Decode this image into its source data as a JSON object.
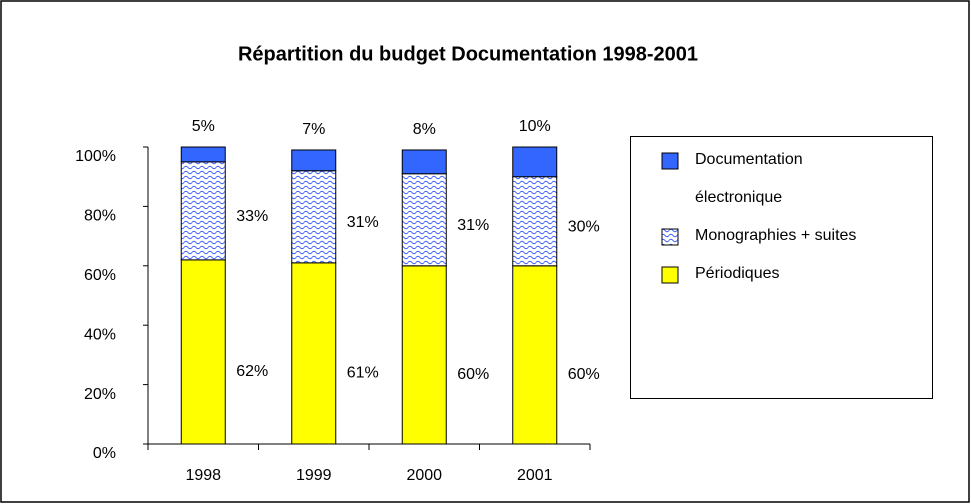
{
  "chart_data": {
    "type": "stacked-bar",
    "title": "Répartition du budget Documentation 1998-2001",
    "categories": [
      "1998",
      "1999",
      "2000",
      "2001"
    ],
    "series": [
      {
        "name": "Périodiques",
        "color": "#ffff00",
        "values": [
          62,
          61,
          60,
          60
        ],
        "value_labels": [
          "62%",
          "61%",
          "60%",
          "60%"
        ]
      },
      {
        "name": "Monographies + suites",
        "color": "#3a5cff",
        "values": [
          33,
          31,
          31,
          30
        ],
        "value_labels": [
          "33%",
          "31%",
          "31%",
          "30%"
        ]
      },
      {
        "name": "Documentation électronique",
        "color": "#3366ff",
        "values": [
          5,
          7,
          8,
          10
        ],
        "value_labels": [
          "5%",
          "7%",
          "8%",
          "10%"
        ]
      }
    ],
    "ylim": [
      0,
      100
    ],
    "yticks": [
      {
        "value": 0,
        "label": "0%"
      },
      {
        "value": 20,
        "label": "20%"
      },
      {
        "value": 40,
        "label": "40%"
      },
      {
        "value": 60,
        "label": "60%"
      },
      {
        "value": 80,
        "label": "80%"
      },
      {
        "value": 100,
        "label": "100%"
      }
    ],
    "grid": false,
    "legend": "right"
  }
}
